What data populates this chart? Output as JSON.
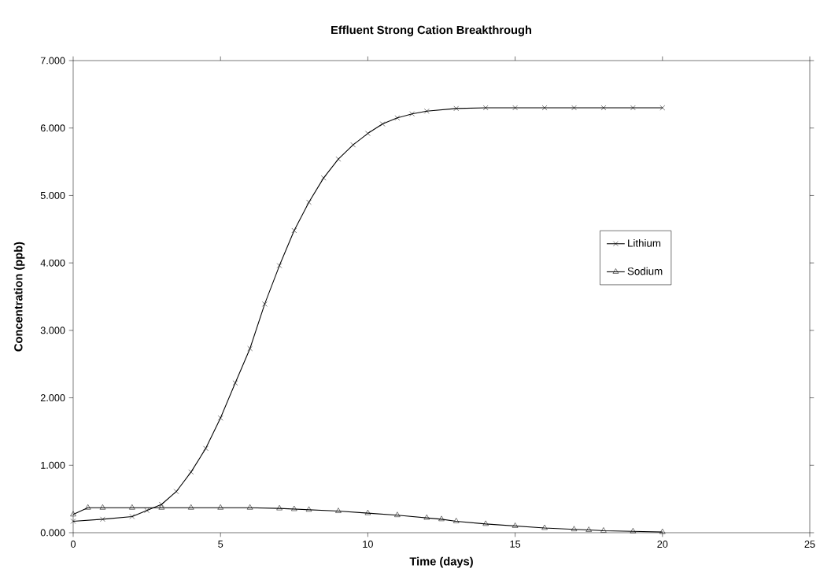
{
  "chart_data": {
    "type": "line",
    "title": "Effluent Strong Cation Breakthrough",
    "xlabel": "Time (days)",
    "ylabel": "Concentration (ppb)",
    "xlim": [
      0,
      25
    ],
    "xticks": [
      0,
      5,
      10,
      15,
      20,
      25
    ],
    "ylim": [
      0,
      7
    ],
    "yticks": [
      {
        "value": 0,
        "label": "0.000"
      },
      {
        "value": 1,
        "label": "1.000"
      },
      {
        "value": 2,
        "label": "2.000"
      },
      {
        "value": 3,
        "label": "3.000"
      },
      {
        "value": 4,
        "label": "4.000"
      },
      {
        "value": 5,
        "label": "5.000"
      },
      {
        "value": 6,
        "label": "6.000"
      },
      {
        "value": 7,
        "label": "7.000"
      }
    ],
    "legend": "right",
    "line_style": "solid",
    "series": [
      {
        "name": "Lithium",
        "color": "#000000",
        "marker": "cross",
        "x": [
          0,
          1,
          2,
          2.5,
          3,
          3.5,
          4,
          4.5,
          5,
          5.5,
          6,
          6.5,
          7,
          7.5,
          8,
          8.5,
          9,
          9.5,
          10,
          10.5,
          11,
          11.5,
          12,
          13,
          14,
          15,
          16,
          17,
          18,
          19,
          20
        ],
        "values": [
          0.17,
          0.2,
          0.24,
          0.33,
          0.42,
          0.61,
          0.9,
          1.25,
          1.7,
          2.22,
          2.73,
          3.39,
          3.96,
          4.48,
          4.9,
          5.26,
          5.54,
          5.75,
          5.92,
          6.06,
          6.15,
          6.21,
          6.25,
          6.29,
          6.3,
          6.3,
          6.3,
          6.3,
          6.3,
          6.3,
          6.3
        ]
      },
      {
        "name": "Sodium",
        "color": "#000000",
        "marker": "triangle",
        "x": [
          0,
          0.5,
          1,
          2,
          3,
          4,
          5,
          6,
          7,
          7.5,
          8,
          9,
          10,
          11,
          12,
          12.5,
          13,
          14,
          15,
          16,
          17,
          17.5,
          18,
          19,
          20
        ],
        "values": [
          0.27,
          0.37,
          0.37,
          0.37,
          0.37,
          0.37,
          0.37,
          0.37,
          0.36,
          0.35,
          0.34,
          0.32,
          0.29,
          0.26,
          0.22,
          0.2,
          0.17,
          0.13,
          0.1,
          0.07,
          0.05,
          0.04,
          0.03,
          0.02,
          0.01
        ]
      }
    ]
  }
}
